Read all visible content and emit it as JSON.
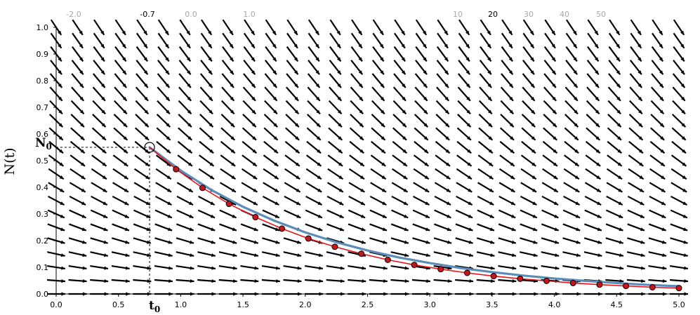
{
  "chart_data": {
    "type": "line",
    "title": "",
    "ylabel": "N(t)",
    "xlabel": "",
    "xlim": [
      0,
      5
    ],
    "ylim": [
      0,
      1
    ],
    "x_ticks": [
      "0.0",
      "0.5",
      "1.0",
      "1.5",
      "2.0",
      "2.5",
      "3.0",
      "3.5",
      "4.0",
      "4.5",
      "5.0"
    ],
    "y_ticks": [
      "0.0",
      "0.1",
      "0.2",
      "0.3",
      "0.4",
      "0.5",
      "0.6",
      "0.7",
      "0.8",
      "0.9",
      "1.0"
    ],
    "grid": false,
    "top_sliders": [
      {
        "values": [
          "-2.0",
          "-0.7",
          "0.0",
          "1.0"
        ],
        "selected": "-0.7"
      },
      {
        "values": [
          "10",
          "20",
          "30",
          "40",
          "50"
        ],
        "selected": "20"
      }
    ],
    "initial_point": {
      "t": 0.75,
      "N": 0.55,
      "t_label": "t",
      "t_sub": "0",
      "n_label": "N",
      "n_sub": "0"
    },
    "decay_rate": 0.7,
    "euler_steps": 20,
    "series": [
      {
        "style": "smooth",
        "x": [
          0.75,
          1.0,
          1.25,
          1.5,
          1.75,
          2.0,
          2.25,
          2.5,
          2.75,
          3.0,
          3.25,
          3.5,
          3.75,
          4.0,
          4.25,
          4.5,
          4.75,
          5.0
        ],
        "values": [
          0.55,
          0.463,
          0.389,
          0.327,
          0.275,
          0.231,
          0.194,
          0.163,
          0.137,
          0.116,
          0.097,
          0.082,
          0.069,
          0.058,
          0.049,
          0.041,
          0.034,
          0.029
        ]
      },
      {
        "style": "euler",
        "x": [
          0.75,
          0.9625,
          1.175,
          1.3875,
          1.6,
          1.8125,
          2.025,
          2.2375,
          2.45,
          2.6625,
          2.875,
          3.0875,
          3.3,
          3.5125,
          3.725,
          3.9375,
          4.15,
          4.3625,
          4.575,
          4.7875,
          5.0
        ],
        "values": [
          0.55,
          0.468,
          0.398,
          0.338,
          0.288,
          0.245,
          0.208,
          0.177,
          0.151,
          0.128,
          0.109,
          0.093,
          0.079,
          0.067,
          0.057,
          0.049,
          0.041,
          0.035,
          0.03,
          0.025,
          0.022
        ]
      }
    ],
    "colors": {
      "smooth": "#5b8db8",
      "euler_line": "#e8141a",
      "euler_marker": "#c4161c",
      "field": "#000000",
      "slider_inactive": "#a8a8a8",
      "slider_active": "#000000"
    }
  }
}
